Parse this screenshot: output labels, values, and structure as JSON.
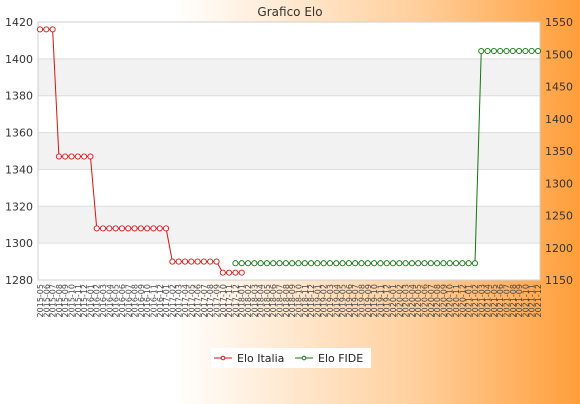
{
  "chart_data": {
    "type": "line",
    "title": "Grafico Elo",
    "left_axis": {
      "min": 1280,
      "max": 1420,
      "ticks": [
        1280,
        1300,
        1320,
        1340,
        1360,
        1380,
        1400,
        1420
      ]
    },
    "right_axis": {
      "min": 1150,
      "max": 1550,
      "ticks": [
        1150,
        1200,
        1250,
        1300,
        1350,
        1400,
        1450,
        1500,
        1550
      ]
    },
    "grid": "horizontal",
    "legend_position": "bottom",
    "x_count": 80,
    "series": [
      {
        "name": "Elo Italia",
        "axis": "left",
        "color": "#dd1111",
        "segments": [
          {
            "from": 0,
            "to": 2,
            "value": 1416
          },
          {
            "from": 3,
            "to": 8,
            "value": 1347
          },
          {
            "from": 9,
            "to": 20,
            "value": 1308
          },
          {
            "from": 21,
            "to": 28,
            "value": 1290
          },
          {
            "from": 29,
            "to": 32,
            "value": 1284
          }
        ]
      },
      {
        "name": "Elo FIDE",
        "axis": "right",
        "color": "#117711",
        "segments": [
          {
            "from": 31,
            "to": 69,
            "value": 1176
          },
          {
            "from": 70,
            "to": 79,
            "value": 1505
          }
        ]
      }
    ],
    "x_labels": [
      "2015-05",
      "2015-06",
      "2015-07",
      "2015-08",
      "2015-09",
      "2015-10",
      "2015-11",
      "2015-12",
      "2016-01",
      "2016-02",
      "2016-03",
      "2016-04",
      "2016-05",
      "2016-06",
      "2016-07",
      "2016-08",
      "2016-09",
      "2016-10",
      "2016-11",
      "2016-12",
      "2017-01",
      "2017-02",
      "2017-03",
      "2017-04",
      "2017-05",
      "2017-06",
      "2017-07",
      "2017-08",
      "2017-09",
      "2017-10",
      "2017-11",
      "2017-12",
      "2018-01",
      "2018-02",
      "2018-03",
      "2018-04",
      "2018-05",
      "2018-06",
      "2018-07",
      "2018-08",
      "2018-09",
      "2018-10",
      "2018-11",
      "2018-12",
      "2019-01",
      "2019-02",
      "2019-03",
      "2019-04",
      "2019-05",
      "2019-06",
      "2019-07",
      "2019-08",
      "2019-09",
      "2019-10",
      "2019-11",
      "2019-12",
      "2020-01",
      "2020-02",
      "2020-03",
      "2020-04",
      "2020-05",
      "2020-06",
      "2020-07",
      "2020-08",
      "2020-09",
      "2020-10",
      "2020-11",
      "2020-12",
      "2021-01",
      "2021-02",
      "2021-03",
      "2021-04",
      "2021-05",
      "2021-06",
      "2021-07",
      "2021-08",
      "2021-09",
      "2021-10",
      "2021-11",
      "2021-12"
    ]
  }
}
